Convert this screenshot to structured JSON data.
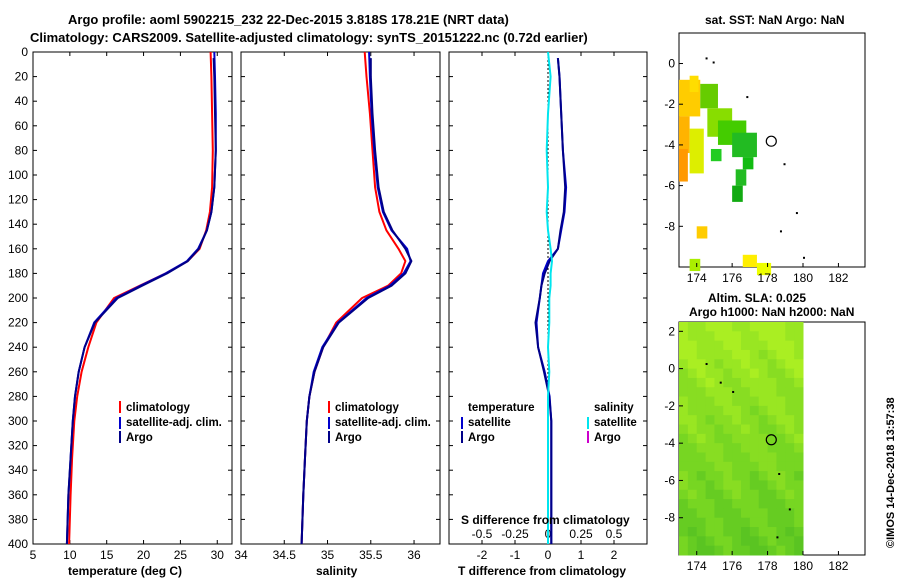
{
  "title": {
    "line1": "Argo profile: aoml 5902215_232 22-Dec-2015 3.818S 178.21E (NRT data)",
    "line2": "Climatology: CARS2009. Satellite-adjusted climatology: synTS_20151222.nc (0.72d earlier)"
  },
  "colors": {
    "climatology": "#ff0000",
    "satellite_temp": "#0000cc",
    "argo": "#000088",
    "satellite_sal": "#00e5ee",
    "argo_sal": "#cc00cc"
  },
  "timestamp": "©IMOS 14-Dec-2018 13:57:38",
  "chart_data": [
    {
      "id": "temperature",
      "type": "line",
      "xlabel": "temperature (deg C)",
      "ylabel": "",
      "xlim": [
        5,
        32
      ],
      "ylim": [
        400,
        0
      ],
      "xticks": [
        5,
        10,
        15,
        20,
        25,
        30
      ],
      "yticks": [
        0,
        20,
        40,
        60,
        80,
        100,
        120,
        140,
        160,
        180,
        200,
        220,
        240,
        260,
        280,
        300,
        320,
        340,
        360,
        380,
        400
      ],
      "legend": [
        "climatology",
        "satellite-adj. clim.",
        "Argo"
      ],
      "series": [
        {
          "name": "climatology",
          "color": "#ff0000",
          "x": [
            29.1,
            29.2,
            29.3,
            29.4,
            29.3,
            29.0,
            28.5,
            27.6,
            26.0,
            23.0,
            19.5,
            16.0,
            13.6,
            12.5,
            11.6,
            11.0,
            10.6,
            10.3,
            10.1,
            9.9
          ],
          "y": [
            0,
            20,
            50,
            80,
            110,
            130,
            145,
            160,
            170,
            180,
            190,
            200,
            220,
            240,
            260,
            280,
            300,
            330,
            360,
            400
          ]
        },
        {
          "name": "satellite-adj. clim.",
          "color": "#0000cc",
          "x": [
            29.6,
            29.7,
            29.8,
            29.8,
            29.6,
            29.2,
            28.6,
            27.4,
            25.9,
            23.0,
            19.6,
            16.3,
            13.3,
            12.0,
            11.2,
            10.7,
            10.4,
            10.1,
            9.8,
            9.6
          ],
          "y": [
            0,
            20,
            50,
            80,
            110,
            130,
            145,
            160,
            170,
            180,
            190,
            200,
            220,
            240,
            260,
            280,
            300,
            330,
            360,
            400
          ]
        },
        {
          "name": "Argo",
          "color": "#000088",
          "x": [
            29.5,
            29.6,
            29.7,
            29.8,
            29.6,
            29.2,
            28.6,
            27.5,
            26.0,
            23.2,
            19.8,
            16.5,
            13.4,
            12.0,
            11.2,
            10.7,
            10.4,
            10.1,
            9.8,
            9.6
          ],
          "y": [
            5,
            20,
            50,
            80,
            110,
            130,
            145,
            160,
            170,
            180,
            190,
            200,
            220,
            240,
            260,
            280,
            300,
            330,
            360,
            400
          ]
        }
      ]
    },
    {
      "id": "salinity",
      "type": "line",
      "xlabel": "salinity",
      "ylabel": "",
      "xlim": [
        34,
        36.3
      ],
      "ylim": [
        400,
        0
      ],
      "xticks": [
        34,
        34.5,
        35,
        35.5,
        36
      ],
      "legend": [
        "climatology",
        "satellite-adj. clim.",
        "Argo"
      ],
      "series": [
        {
          "name": "climatology",
          "color": "#ff0000",
          "x": [
            35.43,
            35.45,
            35.49,
            35.52,
            35.55,
            35.6,
            35.68,
            35.82,
            35.9,
            35.85,
            35.7,
            35.4,
            35.1,
            34.95,
            34.85,
            34.79,
            34.76,
            34.74,
            34.72,
            34.7
          ],
          "y": [
            0,
            20,
            50,
            80,
            110,
            130,
            145,
            160,
            170,
            180,
            190,
            200,
            220,
            240,
            260,
            280,
            300,
            330,
            360,
            400
          ]
        },
        {
          "name": "satellite-adj. clim.",
          "color": "#0000cc",
          "x": [
            35.48,
            35.49,
            35.51,
            35.54,
            35.58,
            35.64,
            35.74,
            35.92,
            35.96,
            35.88,
            35.72,
            35.45,
            35.12,
            34.94,
            34.84,
            34.79,
            34.76,
            34.74,
            34.72,
            34.7
          ],
          "y": [
            0,
            20,
            50,
            80,
            110,
            130,
            145,
            160,
            170,
            180,
            190,
            200,
            220,
            240,
            260,
            280,
            300,
            330,
            360,
            400
          ]
        },
        {
          "name": "Argo",
          "color": "#000088",
          "x": [
            35.5,
            35.5,
            35.52,
            35.55,
            35.59,
            35.65,
            35.75,
            35.9,
            35.97,
            35.9,
            35.74,
            35.47,
            35.13,
            34.95,
            34.85,
            34.79,
            34.76,
            34.74,
            34.72,
            34.7
          ],
          "y": [
            5,
            20,
            50,
            80,
            110,
            130,
            145,
            160,
            170,
            180,
            190,
            200,
            220,
            240,
            260,
            280,
            300,
            330,
            360,
            400
          ]
        }
      ]
    },
    {
      "id": "difference",
      "type": "line",
      "xlabel": "T difference from climatology",
      "top_axis_label": "S difference from climatology",
      "xlim": [
        -3,
        3
      ],
      "ylim": [
        400,
        0
      ],
      "xticks": [
        -2,
        -1,
        0,
        1,
        2
      ],
      "s_xlim": [
        -0.75,
        0.75
      ],
      "s_xticks": [
        -0.5,
        -0.25,
        0,
        0.25,
        0.5
      ],
      "legend_temperature": {
        "title": "temperature",
        "items": [
          "satellite",
          "Argo"
        ]
      },
      "legend_salinity": {
        "title": "salinity",
        "items": [
          "satellite",
          "Argo"
        ]
      },
      "series": [
        {
          "name": "T satellite",
          "color": "#0000cc",
          "axis": "T",
          "x": [
            0.3,
            0.35,
            0.4,
            0.45,
            0.55,
            0.5,
            0.4,
            0.3,
            0.0,
            -0.15,
            -0.2,
            -0.25,
            -0.35,
            -0.3,
            -0.1,
            0.05,
            0.1,
            0.1,
            0.1,
            0.1
          ],
          "y": [
            5,
            20,
            50,
            80,
            110,
            130,
            145,
            160,
            170,
            180,
            190,
            200,
            220,
            240,
            260,
            280,
            300,
            330,
            360,
            400
          ]
        },
        {
          "name": "T Argo",
          "color": "#000088",
          "axis": "T",
          "x": [
            0.3,
            0.35,
            0.4,
            0.45,
            0.52,
            0.48,
            0.38,
            0.3,
            0.05,
            -0.1,
            -0.2,
            -0.25,
            -0.38,
            -0.3,
            -0.12,
            0.04,
            0.1,
            0.1,
            0.1,
            0.1
          ],
          "y": [
            5,
            20,
            50,
            80,
            110,
            130,
            145,
            160,
            170,
            180,
            190,
            200,
            220,
            240,
            260,
            280,
            300,
            330,
            360,
            400
          ]
        },
        {
          "name": "S satellite",
          "color": "#00e5ee",
          "axis": "S",
          "x": [
            0.0,
            0.02,
            0.0,
            -0.01,
            0.0,
            -0.01,
            0.0,
            0.02,
            0.03,
            0.02,
            0.02,
            0.01,
            0.01,
            0.0,
            0.01,
            0.0,
            0.0,
            0.0,
            0.0,
            0.0
          ],
          "y": [
            0,
            20,
            50,
            80,
            110,
            130,
            145,
            160,
            170,
            180,
            190,
            200,
            220,
            240,
            260,
            280,
            300,
            330,
            360,
            400
          ]
        }
      ]
    },
    {
      "id": "sst_map",
      "type": "heatmap",
      "title": "sat. SST: NaN Argo: NaN",
      "xlim": [
        173,
        183.5
      ],
      "ylim": [
        -10,
        1.5
      ],
      "xticks": [
        174,
        176,
        178,
        180,
        182
      ],
      "yticks": [
        0,
        -2,
        -4,
        -6,
        -8
      ],
      "marker": {
        "lon": 178.21,
        "lat": -3.818
      }
    },
    {
      "id": "sla_map",
      "type": "heatmap",
      "title_line1": "Altim. SLA: 0.025",
      "title_line2": "Argo h1000: NaN h2000: NaN",
      "xlim": [
        173,
        183.5
      ],
      "ylim": [
        -10,
        2.5
      ],
      "xticks": [
        174,
        176,
        178,
        180,
        182
      ],
      "yticks": [
        2,
        0,
        -2,
        -4,
        -6,
        -8
      ],
      "marker": {
        "lon": 178.21,
        "lat": -3.818
      }
    }
  ]
}
